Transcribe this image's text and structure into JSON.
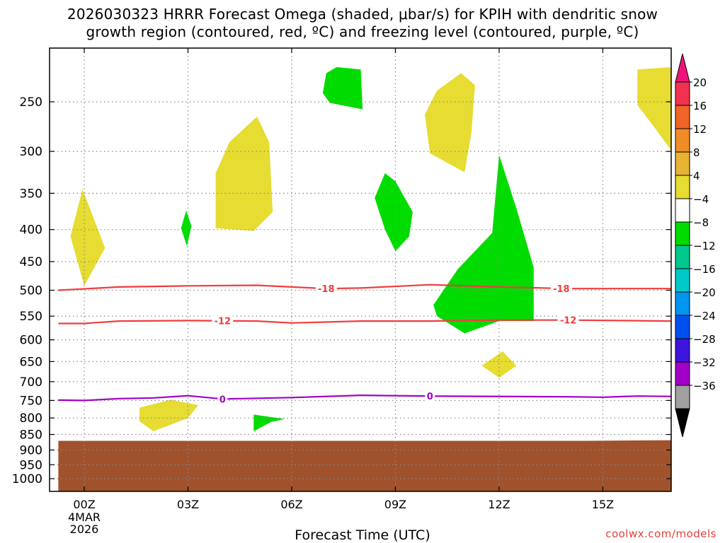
{
  "title": {
    "line1": "2026030323 HRRR Forecast Omega (shaded, μbar/s) for KPIH with dendritic snow",
    "line2": "growth region (contoured, red, ºC) and freezing level (contoured, purple, ºC)"
  },
  "credit": "coolwx.com/models",
  "chart_data": {
    "type": "contour",
    "xlabel": "Forecast Time (UTC)",
    "xlim": [
      -0.75,
      17
    ],
    "y_axis": {
      "scale": "log-pressure",
      "reversed": true,
      "range_hPa": [
        1050,
        200
      ]
    },
    "x_ticks": [
      {
        "hour": 0,
        "label": "00Z",
        "sublabels": [
          "4MAR",
          "2026"
        ]
      },
      {
        "hour": 3,
        "label": "03Z"
      },
      {
        "hour": 6,
        "label": "06Z"
      },
      {
        "hour": 9,
        "label": "09Z"
      },
      {
        "hour": 12,
        "label": "12Z"
      },
      {
        "hour": 15,
        "label": "15Z"
      }
    ],
    "y_ticks": [
      250,
      300,
      350,
      400,
      450,
      500,
      550,
      600,
      650,
      700,
      750,
      800,
      850,
      900,
      950,
      1000
    ],
    "grid": true,
    "colorbar": {
      "levels": [
        "20",
        "16",
        "12",
        "8",
        "4",
        "−4",
        "−8",
        "−12",
        "−16",
        "−20",
        "−24",
        "−28",
        "−32",
        "−36"
      ],
      "colors_top_to_bottom": [
        "#f03250",
        "#f06428",
        "#f08c28",
        "#e6b432",
        "#e6dc32",
        "#ffffff",
        "#00dc00",
        "#00c88c",
        "#00c8c8",
        "#0096f0",
        "#0050f0",
        "#3c14dc",
        "#a000c8",
        "#a0a0a0"
      ],
      "over_color": "#f0147a",
      "under_color": "#000000"
    },
    "colors": {
      "positive_4_8": "#e6dc32",
      "negative_4_8": "#00dc00",
      "ground": "#a0522d",
      "dgz_contour": "#f03c3c",
      "freezing_contour": "#a000c8"
    },
    "ground_pressure_hPa": [
      {
        "hour": -0.75,
        "p": 870
      },
      {
        "hour": 14.5,
        "p": 870
      },
      {
        "hour": 17,
        "p": 868
      }
    ],
    "omega_regions": [
      {
        "sign": "positive",
        "band": "4 to 8",
        "polygon": [
          [
            -0.05,
            345
          ],
          [
            0.6,
            428
          ],
          [
            0.0,
            492
          ],
          [
            -0.4,
            410
          ]
        ]
      },
      {
        "sign": "negative",
        "band": "-4 to -8",
        "polygon": [
          [
            2.95,
            373
          ],
          [
            3.1,
            395
          ],
          [
            2.97,
            425
          ],
          [
            2.8,
            398
          ]
        ]
      },
      {
        "sign": "positive",
        "band": "4 to 8",
        "polygon": [
          [
            5.0,
            264
          ],
          [
            5.35,
            290
          ],
          [
            5.45,
            375
          ],
          [
            4.9,
            402
          ],
          [
            3.8,
            398
          ],
          [
            3.8,
            325
          ],
          [
            4.2,
            290
          ]
        ]
      },
      {
        "sign": "negative",
        "band": "-4 to -8",
        "polygon": [
          [
            7.0,
            225
          ],
          [
            7.3,
            220
          ],
          [
            8.0,
            222
          ],
          [
            8.05,
            257
          ],
          [
            7.1,
            251
          ],
          [
            6.9,
            242
          ]
        ]
      },
      {
        "sign": "positive",
        "band": "4 to 8",
        "polygon": [
          [
            10.9,
            225
          ],
          [
            11.3,
            235
          ],
          [
            11.2,
            280
          ],
          [
            11.0,
            324
          ],
          [
            10.0,
            302
          ],
          [
            9.85,
            262
          ],
          [
            10.2,
            240
          ]
        ]
      },
      {
        "sign": "negative",
        "band": "-4 to -8",
        "polygon": [
          [
            8.7,
            325
          ],
          [
            9.0,
            335
          ],
          [
            9.5,
            375
          ],
          [
            9.4,
            410
          ],
          [
            9.0,
            433
          ],
          [
            8.7,
            400
          ],
          [
            8.4,
            356
          ]
        ]
      },
      {
        "sign": "negative",
        "band": "-4 to -8",
        "polygon": [
          [
            12.0,
            304
          ],
          [
            12.5,
            370
          ],
          [
            13.0,
            460
          ],
          [
            13.0,
            560
          ],
          [
            12.0,
            560
          ],
          [
            11.0,
            586
          ],
          [
            10.2,
            550
          ],
          [
            10.1,
            528
          ],
          [
            10.8,
            463
          ],
          [
            11.8,
            405
          ]
        ]
      },
      {
        "sign": "positive",
        "band": "4 to 8",
        "polygon": [
          [
            12.1,
            626
          ],
          [
            12.5,
            660
          ],
          [
            12.0,
            690
          ],
          [
            11.5,
            660
          ]
        ]
      },
      {
        "sign": "positive",
        "band": "4 to 8",
        "polygon": [
          [
            1.6,
            770
          ],
          [
            2.5,
            748
          ],
          [
            3.3,
            763
          ],
          [
            3.0,
            800
          ],
          [
            2.0,
            840
          ],
          [
            1.6,
            810
          ]
        ]
      },
      {
        "sign": "negative",
        "band": "-4 to -8",
        "polygon": [
          [
            4.9,
            790
          ],
          [
            5.8,
            803
          ],
          [
            5.4,
            812
          ],
          [
            4.9,
            840
          ]
        ]
      },
      {
        "sign": "positive",
        "band": "4 to 8",
        "polygon": [
          [
            16.0,
            222
          ],
          [
            17.0,
            220
          ],
          [
            17.0,
            300
          ],
          [
            16.5,
            275
          ],
          [
            16.0,
            253
          ]
        ]
      }
    ],
    "contours": [
      {
        "value": -18,
        "label": "-18",
        "color": "#f03c3c",
        "points": [
          [
            -0.75,
            500
          ],
          [
            1,
            494
          ],
          [
            3,
            492
          ],
          [
            5,
            491
          ],
          [
            6,
            494
          ],
          [
            7,
            497
          ],
          [
            8,
            496
          ],
          [
            10,
            490
          ],
          [
            12,
            494
          ],
          [
            14,
            497
          ],
          [
            17,
            497
          ]
        ],
        "label_hours": [
          7.0,
          13.8
        ]
      },
      {
        "value": -12,
        "label": "-12",
        "color": "#f03c3c",
        "points": [
          [
            -0.75,
            565
          ],
          [
            0,
            565
          ],
          [
            1,
            560
          ],
          [
            3,
            559
          ],
          [
            5,
            560
          ],
          [
            6,
            564
          ],
          [
            8,
            560
          ],
          [
            10,
            560
          ],
          [
            12,
            558
          ],
          [
            14,
            558
          ],
          [
            17,
            560
          ]
        ],
        "label_hours": [
          4.0,
          14.0
        ]
      },
      {
        "value": 0,
        "label": "0",
        "color": "#a000c8",
        "points": [
          [
            -0.75,
            749
          ],
          [
            0,
            750
          ],
          [
            1,
            745
          ],
          [
            2,
            743
          ],
          [
            3,
            737
          ],
          [
            4,
            746
          ],
          [
            6,
            742
          ],
          [
            8,
            736
          ],
          [
            10,
            738
          ],
          [
            14,
            740
          ],
          [
            15,
            741
          ],
          [
            16,
            738
          ],
          [
            17,
            739
          ]
        ],
        "label_hours": [
          4.0,
          10.0
        ]
      }
    ]
  }
}
